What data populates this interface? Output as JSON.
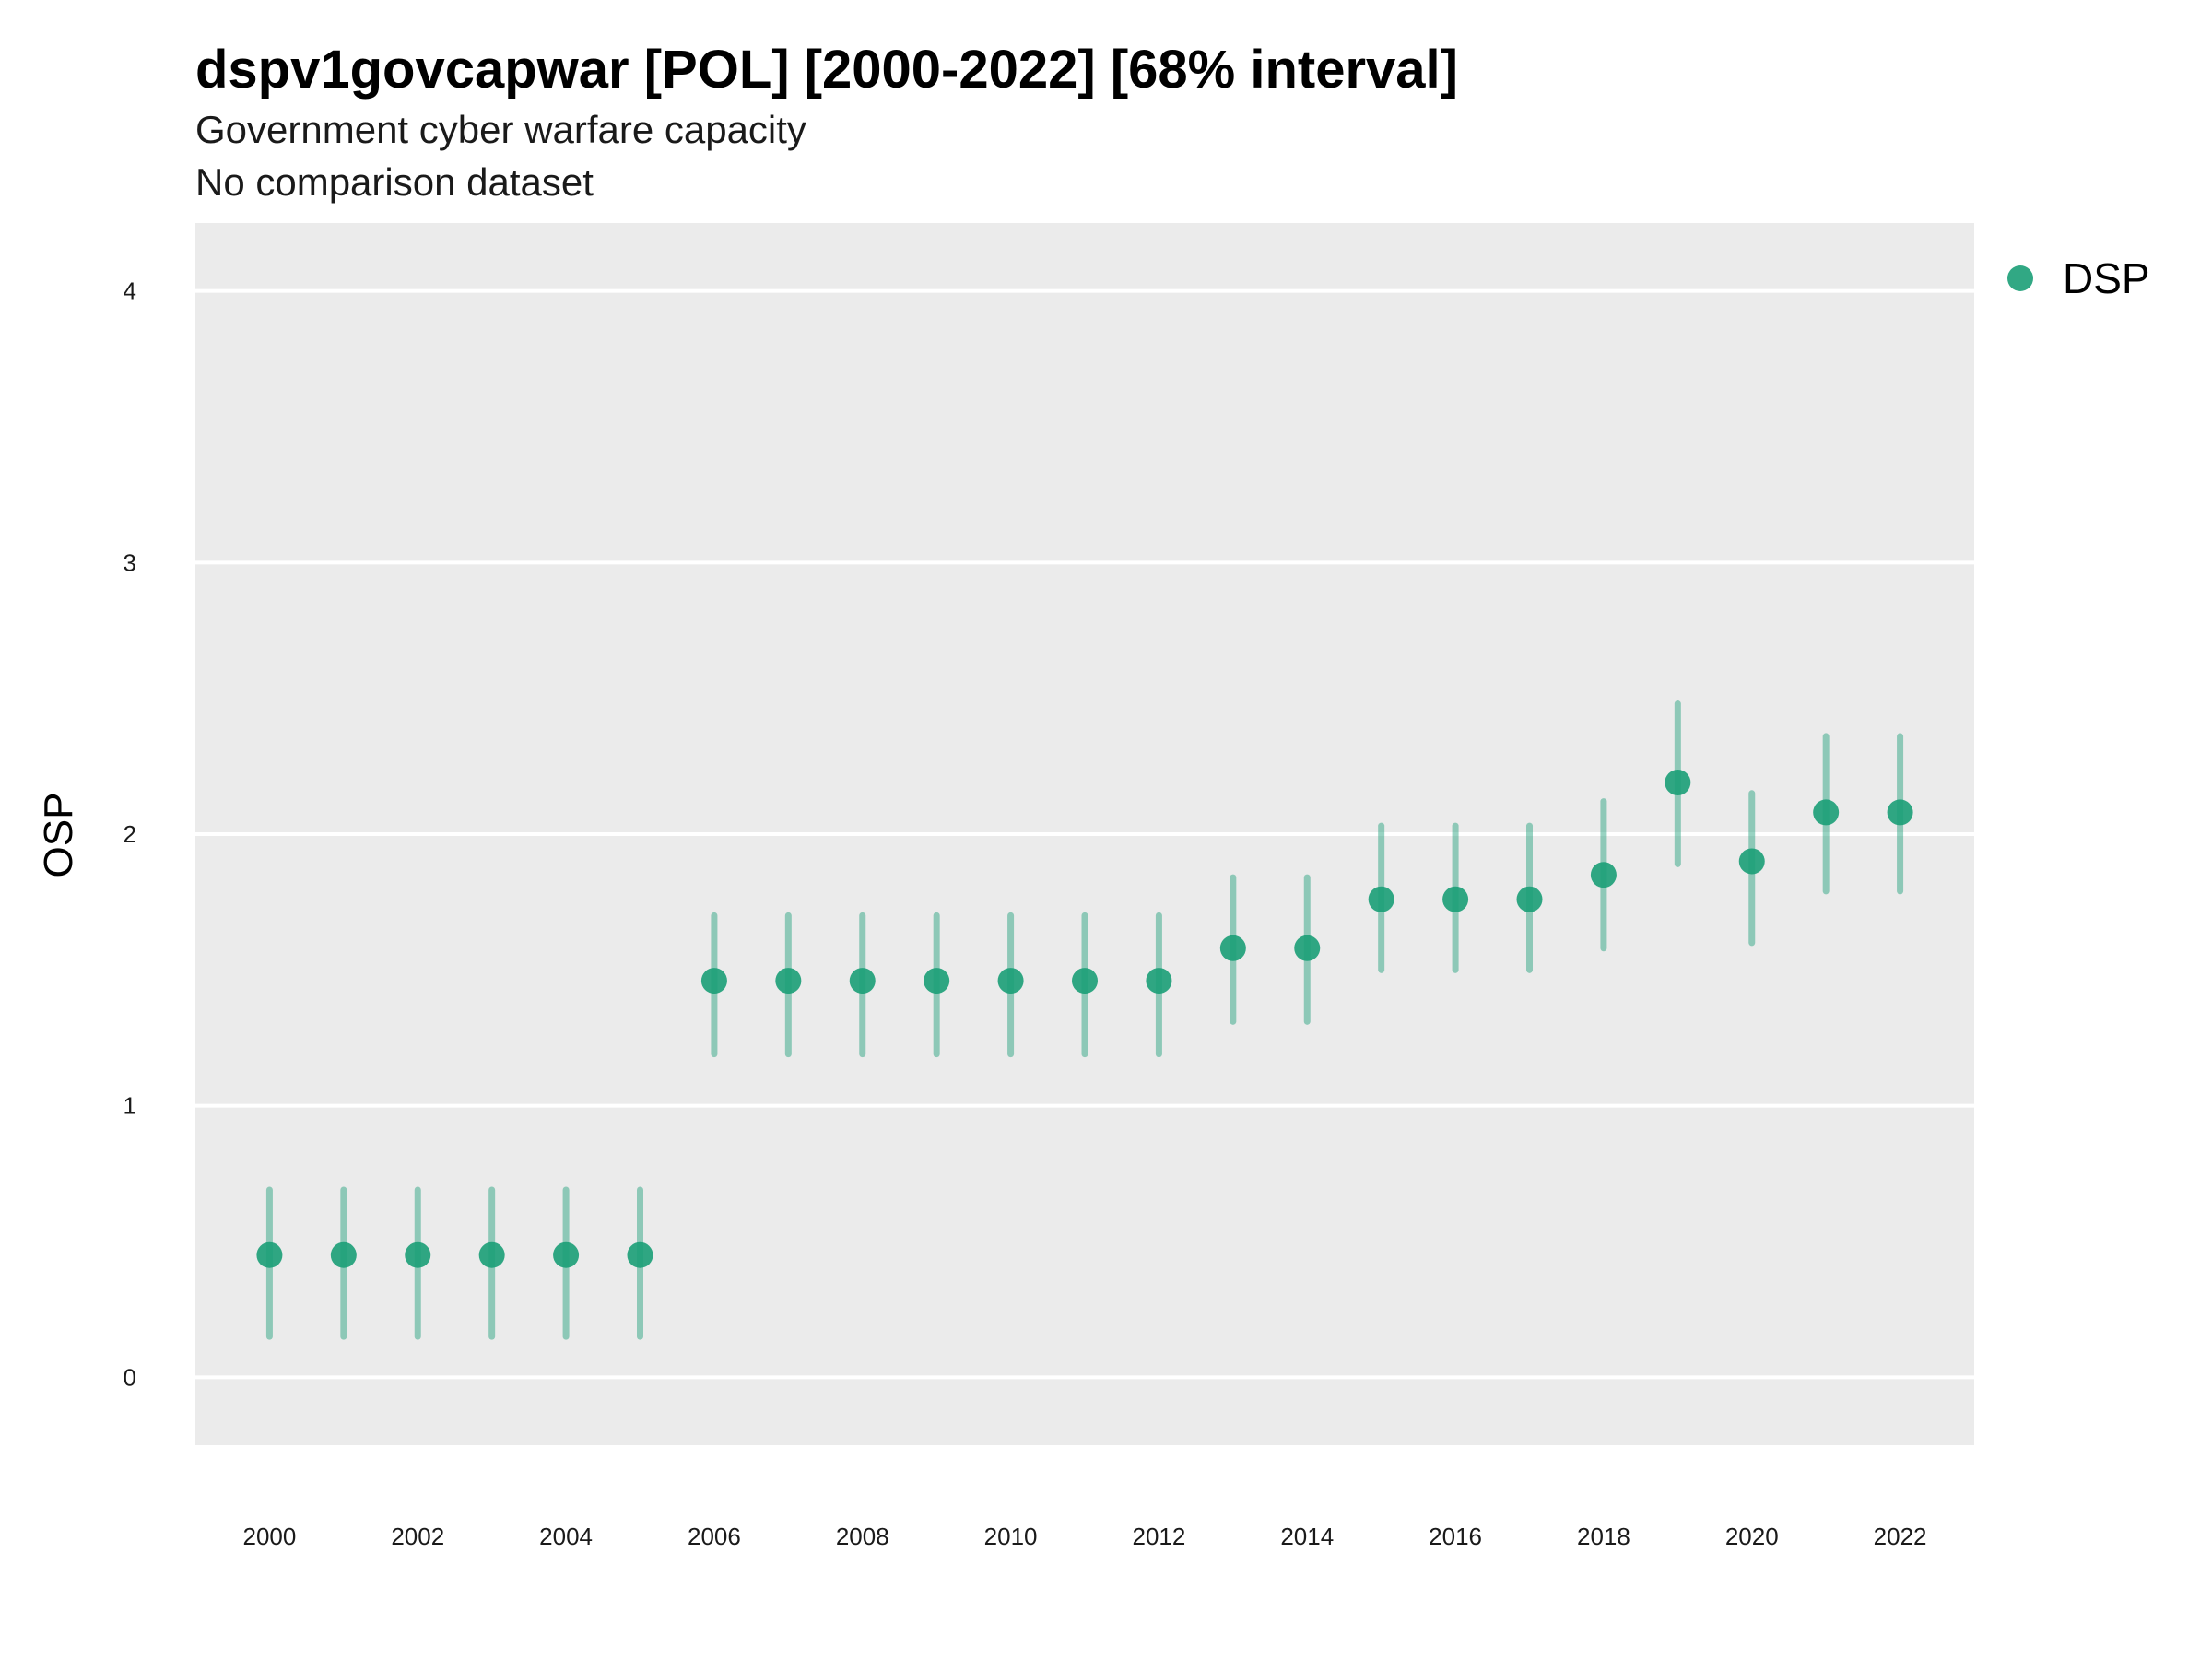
{
  "title": "dspv1govcapwar [POL] [2000-2022] [68% interval]",
  "subtitle": "Government cyber warfare capacity",
  "caption": "No comparison dataset",
  "colors": {
    "panel": "#ebebeb",
    "grid": "#ffffff",
    "point": "#1b9e77",
    "interval": "#1b9e77"
  },
  "chart_data": {
    "type": "scatter",
    "xlabel": "",
    "ylabel": "OSP",
    "xlim": [
      1999,
      2023
    ],
    "ylim": [
      -0.25,
      4.25
    ],
    "x_ticks": [
      2000,
      2002,
      2004,
      2006,
      2008,
      2010,
      2012,
      2014,
      2016,
      2018,
      2020,
      2022
    ],
    "y_ticks": [
      0,
      1,
      2,
      3,
      4
    ],
    "grid": true,
    "legend": {
      "position": "right-top",
      "entries": [
        "DSP"
      ]
    },
    "series": [
      {
        "name": "DSP",
        "x": [
          2000,
          2001,
          2002,
          2003,
          2004,
          2005,
          2006,
          2007,
          2008,
          2009,
          2010,
          2011,
          2012,
          2013,
          2014,
          2015,
          2016,
          2017,
          2018,
          2019,
          2020,
          2021,
          2022
        ],
        "y": [
          0.45,
          0.45,
          0.45,
          0.45,
          0.45,
          0.45,
          1.46,
          1.46,
          1.46,
          1.46,
          1.46,
          1.46,
          1.46,
          1.58,
          1.58,
          1.76,
          1.76,
          1.76,
          1.85,
          2.19,
          1.9,
          2.08,
          2.08
        ],
        "lower": [
          0.15,
          0.15,
          0.15,
          0.15,
          0.15,
          0.15,
          1.19,
          1.19,
          1.19,
          1.19,
          1.19,
          1.19,
          1.19,
          1.31,
          1.31,
          1.5,
          1.5,
          1.5,
          1.58,
          1.89,
          1.6,
          1.79,
          1.79
        ],
        "upper": [
          0.69,
          0.69,
          0.69,
          0.69,
          0.69,
          0.69,
          1.7,
          1.7,
          1.7,
          1.7,
          1.7,
          1.7,
          1.7,
          1.84,
          1.84,
          2.03,
          2.03,
          2.03,
          2.12,
          2.48,
          2.15,
          2.36,
          2.36
        ]
      }
    ]
  }
}
